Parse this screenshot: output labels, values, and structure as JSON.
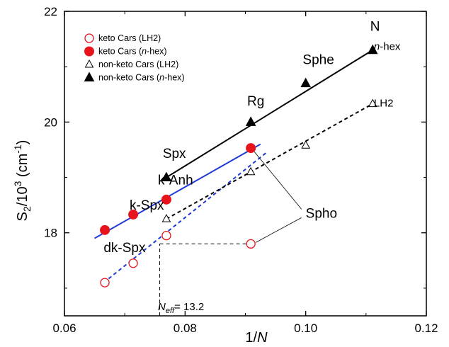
{
  "chart_data": {
    "type": "scatter",
    "xlabel": "1/N",
    "ylabel": "S2/10^3 (cm-1)",
    "xlim": [
      0.06,
      0.12
    ],
    "ylim": [
      16.5,
      22
    ],
    "x_ticks": [
      "0.06",
      "0.08",
      "0.10",
      "0.12"
    ],
    "y_ticks": [
      "18",
      "20",
      "22"
    ],
    "legend_position": "top-left",
    "series": [
      {
        "name": "keto Cars (LH2)",
        "marker": "open-circle",
        "color": "#e8141c",
        "points": [
          {
            "x": 0.0667,
            "y": 17.1
          },
          {
            "x": 0.0714,
            "y": 17.45
          },
          {
            "x": 0.0769,
            "y": 17.95
          },
          {
            "x": 0.0909,
            "y": 17.8
          }
        ],
        "fit": {
          "x1": 0.0665,
          "y1": 17.1,
          "x2": 0.0935,
          "y2": 19.45,
          "style": "dashed",
          "color": "#1f3ad6"
        }
      },
      {
        "name": "keto Cars (n-hex)",
        "marker": "filled-circle",
        "color": "#e8141c",
        "points": [
          {
            "x": 0.0667,
            "y": 18.05
          },
          {
            "x": 0.0714,
            "y": 18.33
          },
          {
            "x": 0.0769,
            "y": 18.6
          },
          {
            "x": 0.0909,
            "y": 19.53
          }
        ],
        "fit": {
          "x1": 0.065,
          "y1": 17.9,
          "x2": 0.0925,
          "y2": 19.6,
          "style": "solid",
          "color": "#1f3ad6"
        }
      },
      {
        "name": "non-keto Cars (LH2)",
        "marker": "open-triangle",
        "color": "#000000",
        "points": [
          {
            "x": 0.0769,
            "y": 18.25
          },
          {
            "x": 0.0909,
            "y": 19.1
          },
          {
            "x": 0.1,
            "y": 19.58
          },
          {
            "x": 0.1111,
            "y": 20.33
          }
        ],
        "fit": {
          "x1": 0.0769,
          "y1": 18.25,
          "x2": 0.1111,
          "y2": 20.33,
          "style": "dashed",
          "color": "#000000"
        }
      },
      {
        "name": "non-keto Cars (n-hex)",
        "marker": "filled-triangle",
        "color": "#000000",
        "points": [
          {
            "x": 0.0769,
            "y": 19.0
          },
          {
            "x": 0.0909,
            "y": 20.0
          },
          {
            "x": 0.1,
            "y": 20.7
          },
          {
            "x": 0.1111,
            "y": 21.3
          }
        ],
        "fit": {
          "x1": 0.0769,
          "y1": 19.0,
          "x2": 0.1111,
          "y2": 21.3,
          "style": "solid",
          "color": "#000000"
        }
      }
    ],
    "annotations": [
      {
        "text": "N",
        "x": 0.1107,
        "y": 21.65
      },
      {
        "text": "n-hex",
        "x": 0.1113,
        "y": 21.3
      },
      {
        "text": "Sphe",
        "x": 0.0995,
        "y": 21.05
      },
      {
        "text": "Rg",
        "x": 0.0903,
        "y": 20.3
      },
      {
        "text": "LH2",
        "x": 0.1113,
        "y": 20.28
      },
      {
        "text": "Spx",
        "x": 0.0763,
        "y": 19.35
      },
      {
        "text": "k-Anh",
        "x": 0.0755,
        "y": 18.87
      },
      {
        "text": "k-Spx",
        "x": 0.0708,
        "y": 18.42
      },
      {
        "text": "Spho",
        "x": 0.1,
        "y": 18.27
      },
      {
        "text": "dk-Spx",
        "x": 0.0665,
        "y": 17.65
      },
      {
        "text": "Neff= 13.2",
        "x": 0.0755,
        "y": 16.6
      }
    ],
    "reference_lines": [
      {
        "from": [
          0.0758,
          16.5
        ],
        "to": [
          0.0758,
          17.8
        ],
        "style": "dashed"
      },
      {
        "from": [
          0.0758,
          17.8
        ],
        "to": [
          0.0909,
          17.8
        ],
        "style": "dashed"
      }
    ]
  },
  "legend": {
    "items": [
      {
        "prefix": "keto Cars (LH2)",
        "italic": "",
        "suffix": ""
      },
      {
        "prefix": "keto Cars (",
        "italic": "n",
        "suffix": "-hex)"
      },
      {
        "prefix": "non-keto Cars (LH2)",
        "italic": "",
        "suffix": ""
      },
      {
        "prefix": "non-keto Cars (",
        "italic": "n",
        "suffix": "-hex)"
      }
    ]
  },
  "axes": {
    "x_title_italic": "N",
    "x_title_prefix": "1/",
    "y_title_parts": [
      "S",
      "2",
      "/10",
      "3",
      " (cm",
      "-1",
      ")"
    ]
  }
}
